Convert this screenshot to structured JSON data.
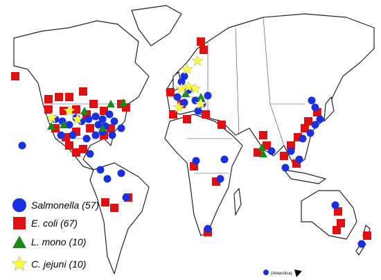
{
  "legend": [
    {
      "name": "Salmonella",
      "count": "(57)"
    },
    {
      "name": "E. coli",
      "count": "(67)"
    },
    {
      "name": "L. mono",
      "count": "(10)"
    },
    {
      "name": "C. jejuni",
      "count": "(10)"
    }
  ],
  "annotation": "(Antarctica)"
}
